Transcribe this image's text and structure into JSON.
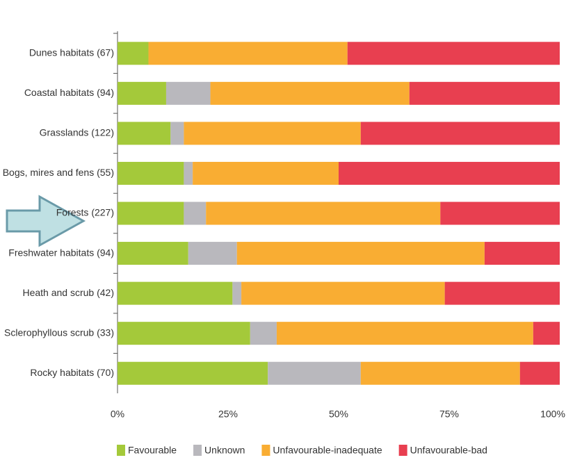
{
  "chart_data": {
    "type": "stacked-barh",
    "categories": [
      "Dunes habitats (67)",
      "Coastal habitats (94)",
      "Grasslands (122)",
      "Bogs, mires and fens (55)",
      "Forests (227)",
      "Freshwater habitats (94)",
      "Heath and  scrub (42)",
      "Sclerophyllous scrub (33)",
      "Rocky habitats (70)"
    ],
    "series": [
      {
        "name": "Favourable",
        "color": "#a4c93a",
        "values": [
          7,
          11,
          12,
          15,
          15,
          16,
          26,
          30,
          34
        ]
      },
      {
        "name": "Unknown",
        "color": "#b9b8bd",
        "values": [
          0,
          10,
          3,
          2,
          5,
          11,
          2,
          6,
          21
        ]
      },
      {
        "name": "Unfavourable-inadequate",
        "color": "#f9ad33",
        "values": [
          45,
          45,
          40,
          33,
          53,
          56,
          46,
          58,
          36
        ]
      },
      {
        "name": "Unfavourable-bad",
        "color": "#e83f50",
        "values": [
          48,
          34,
          45,
          50,
          27,
          17,
          26,
          6,
          9
        ]
      }
    ],
    "xlim": [
      0,
      100
    ],
    "xticks": [
      {
        "value": 0,
        "label": "0%"
      },
      {
        "value": 25,
        "label": "25%"
      },
      {
        "value": 50,
        "label": "50%"
      },
      {
        "value": 75,
        "label": "75%"
      },
      {
        "value": 100,
        "label": "100%"
      }
    ],
    "legend": "bottom"
  }
}
